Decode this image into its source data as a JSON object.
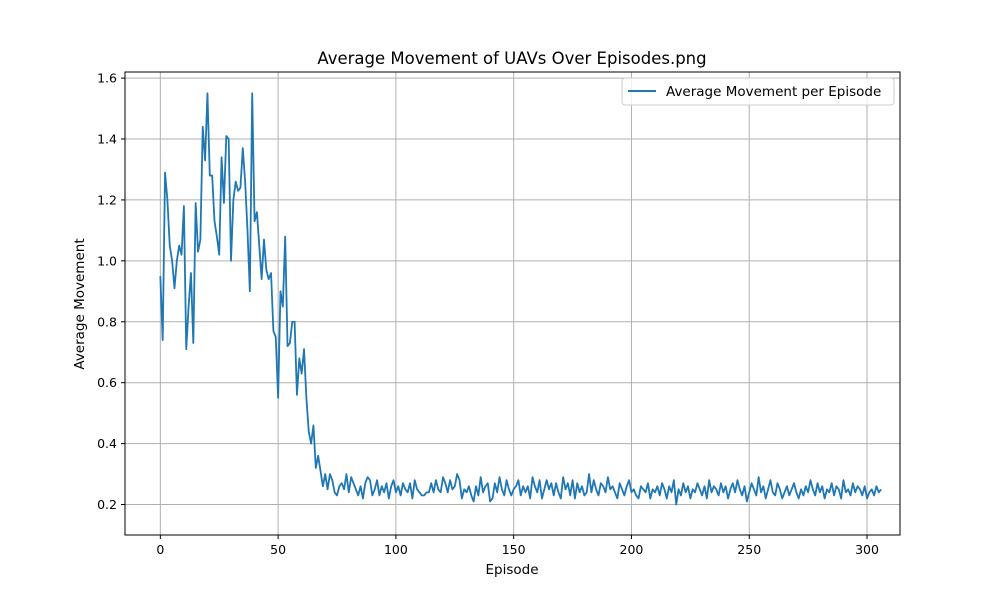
{
  "chart_data": {
    "type": "line",
    "title": "Average Movement of UAVs Over Episodes.png",
    "xlabel": "Episode",
    "ylabel": "Average Movement",
    "xlim": [
      -15,
      314
    ],
    "ylim": [
      0.1,
      1.62
    ],
    "xticks": [
      0,
      50,
      100,
      150,
      200,
      250,
      300
    ],
    "yticks": [
      0.2,
      0.4,
      0.6,
      0.8,
      1.0,
      1.2,
      1.4,
      1.6
    ],
    "xtick_labels": [
      "0",
      "50",
      "100",
      "150",
      "200",
      "250",
      "300"
    ],
    "ytick_labels": [
      "0.2",
      "0.4",
      "0.6",
      "0.8",
      "1.0",
      "1.2",
      "1.4",
      "1.6"
    ],
    "grid": true,
    "legend_position": "top-right",
    "series": [
      {
        "name": "Average Movement per Episode",
        "color": "#1f77b4",
        "x_start": 0,
        "x_step": 1,
        "values": [
          0.95,
          0.74,
          1.29,
          1.2,
          1.05,
          1.0,
          0.91,
          1.0,
          1.05,
          1.02,
          1.18,
          0.71,
          0.85,
          0.96,
          0.73,
          1.19,
          1.03,
          1.07,
          1.44,
          1.33,
          1.55,
          1.28,
          1.28,
          1.13,
          1.08,
          1.02,
          1.34,
          1.19,
          1.41,
          1.4,
          1.0,
          1.2,
          1.26,
          1.23,
          1.24,
          1.37,
          1.26,
          1.1,
          0.9,
          1.55,
          1.13,
          1.16,
          1.05,
          0.94,
          1.07,
          0.97,
          0.94,
          0.96,
          0.77,
          0.75,
          0.55,
          0.9,
          0.85,
          1.08,
          0.72,
          0.73,
          0.8,
          0.8,
          0.56,
          0.68,
          0.63,
          0.71,
          0.55,
          0.44,
          0.4,
          0.46,
          0.32,
          0.36,
          0.31,
          0.26,
          0.3,
          0.25,
          0.3,
          0.28,
          0.24,
          0.23,
          0.26,
          0.27,
          0.25,
          0.3,
          0.24,
          0.29,
          0.27,
          0.25,
          0.23,
          0.26,
          0.22,
          0.27,
          0.29,
          0.28,
          0.23,
          0.25,
          0.28,
          0.23,
          0.26,
          0.24,
          0.27,
          0.22,
          0.26,
          0.28,
          0.24,
          0.26,
          0.23,
          0.27,
          0.25,
          0.24,
          0.27,
          0.22,
          0.28,
          0.25,
          0.24,
          0.23,
          0.23,
          0.24,
          0.24,
          0.27,
          0.24,
          0.28,
          0.25,
          0.24,
          0.29,
          0.27,
          0.24,
          0.28,
          0.25,
          0.26,
          0.3,
          0.28,
          0.22,
          0.25,
          0.24,
          0.26,
          0.23,
          0.21,
          0.26,
          0.23,
          0.29,
          0.24,
          0.26,
          0.27,
          0.21,
          0.22,
          0.27,
          0.24,
          0.29,
          0.25,
          0.23,
          0.28,
          0.25,
          0.23,
          0.25,
          0.26,
          0.28,
          0.23,
          0.26,
          0.24,
          0.26,
          0.22,
          0.29,
          0.26,
          0.24,
          0.28,
          0.22,
          0.25,
          0.28,
          0.25,
          0.27,
          0.23,
          0.27,
          0.24,
          0.22,
          0.29,
          0.25,
          0.27,
          0.23,
          0.28,
          0.22,
          0.27,
          0.24,
          0.26,
          0.23,
          0.24,
          0.3,
          0.24,
          0.28,
          0.25,
          0.23,
          0.27,
          0.26,
          0.24,
          0.29,
          0.25,
          0.26,
          0.24,
          0.22,
          0.27,
          0.25,
          0.23,
          0.26,
          0.28,
          0.24,
          0.25,
          0.23,
          0.22,
          0.26,
          0.25,
          0.24,
          0.27,
          0.22,
          0.25,
          0.24,
          0.26,
          0.23,
          0.27,
          0.25,
          0.22,
          0.26,
          0.24,
          0.28,
          0.2,
          0.25,
          0.23,
          0.27,
          0.24,
          0.26,
          0.22,
          0.25,
          0.24,
          0.27,
          0.25,
          0.23,
          0.26,
          0.22,
          0.28,
          0.24,
          0.26,
          0.25,
          0.23,
          0.27,
          0.24,
          0.26,
          0.22,
          0.25,
          0.27,
          0.24,
          0.28,
          0.25,
          0.23,
          0.26,
          0.21,
          0.24,
          0.27,
          0.25,
          0.23,
          0.29,
          0.24,
          0.26,
          0.22,
          0.25,
          0.28,
          0.24,
          0.23,
          0.27,
          0.25,
          0.22,
          0.24,
          0.26,
          0.23,
          0.25,
          0.27,
          0.24,
          0.22,
          0.25,
          0.23,
          0.26,
          0.24,
          0.28,
          0.25,
          0.23,
          0.27,
          0.24,
          0.26,
          0.22,
          0.25,
          0.24,
          0.27,
          0.23,
          0.26,
          0.25,
          0.22,
          0.28,
          0.24,
          0.25,
          0.23,
          0.27,
          0.24,
          0.26,
          0.25,
          0.23,
          0.26,
          0.22,
          0.24,
          0.25,
          0.23,
          0.26,
          0.24,
          0.25
        ]
      }
    ]
  }
}
